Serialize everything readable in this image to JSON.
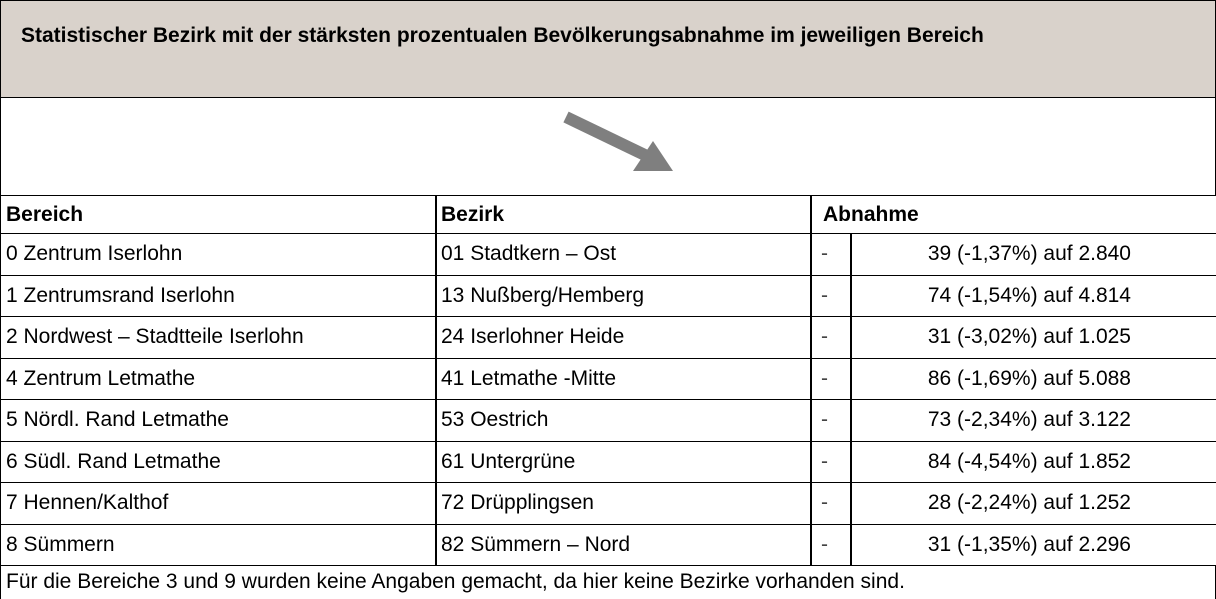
{
  "title": "Statistischer Bezirk mit der stärksten prozentualen Bevölkerungsabnahme im jeweiligen Bereich",
  "table": {
    "headers": [
      "Bereich",
      "Bezirk",
      "Abnahme"
    ],
    "rows": [
      [
        "0 Zentrum Iserlohn",
        "01 Stadtkern – Ost",
        "-",
        "39 (-1,37%) auf 2.840"
      ],
      [
        "1 Zentrumsrand Iserlohn",
        "13 Nußberg/Hemberg",
        "-",
        "74 (-1,54%) auf 4.814"
      ],
      [
        "2 Nordwest – Stadtteile Iserlohn",
        "24 Iserlohner Heide",
        "-",
        "31 (-3,02%) auf 1.025"
      ],
      [
        "4 Zentrum Letmathe",
        "41 Letmathe -Mitte",
        "-",
        "86 (-1,69%) auf 5.088"
      ],
      [
        "5 Nördl. Rand Letmathe",
        "53 Oestrich",
        "-",
        "73 (-2,34%) auf 3.122"
      ],
      [
        "6 Südl. Rand Letmathe",
        "61 Untergrüne",
        "-",
        "84 (-4,54%) auf 1.852"
      ],
      [
        "7 Hennen/Kalthof",
        "72 Drüpplingsen",
        "-",
        "28 (-2,24%) auf 1.252"
      ],
      [
        "8 Sümmern",
        "82 Sümmern – Nord",
        "-",
        "31 (-1,35%) auf 2.296"
      ]
    ]
  },
  "footnote": "Für die Bereiche 3 und 9 wurden keine Angaben gemacht, da hier keine Bezirke vorhanden sind."
}
